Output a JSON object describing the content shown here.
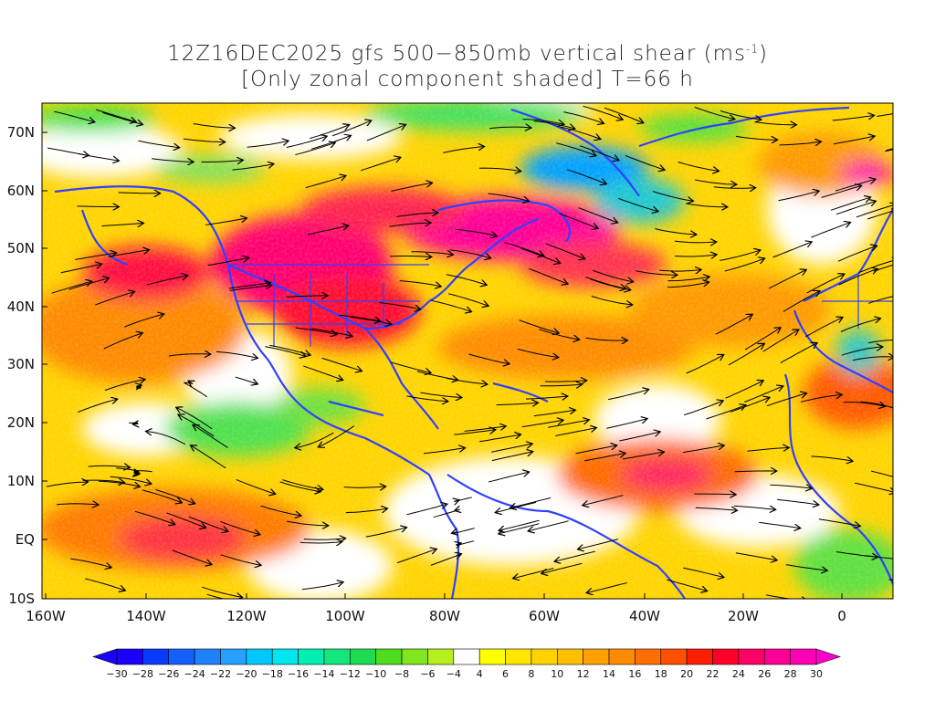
{
  "title": {
    "line1_prefix": "12Z16DEC2025 gfs 500−850mb vertical shear (ms",
    "line1_sup": "-1",
    "line1_suffix": ")",
    "line2": "[Only zonal component shaded] T=66 h"
  },
  "map": {
    "lat_labels": [
      "70N",
      "60N",
      "50N",
      "40N",
      "30N",
      "20N",
      "10N",
      "EQ",
      "10S"
    ],
    "lon_labels": [
      "160W",
      "140W",
      "120W",
      "100W",
      "80W",
      "60W",
      "40W",
      "20W",
      "0"
    ]
  },
  "colorbar": {
    "labels": [
      "-30",
      "-28",
      "-26",
      "-24",
      "-22",
      "-20",
      "-18",
      "-16",
      "-14",
      "-12",
      "-10",
      "-8",
      "-6",
      "-4",
      "4",
      "6",
      "8",
      "10",
      "12",
      "14",
      "16",
      "18",
      "20",
      "22",
      "24",
      "26",
      "28",
      "30"
    ],
    "colors": [
      "#1a00ff",
      "#0a3cff",
      "#1460ff",
      "#1e82ff",
      "#28a0ff",
      "#00c8ff",
      "#00e6f0",
      "#00f0b4",
      "#14e67d",
      "#1edc50",
      "#50dc1e",
      "#82e61e",
      "#b4f01e",
      "#ffffff",
      "#ffff00",
      "#ffe600",
      "#ffd200",
      "#ffbe00",
      "#ffa000",
      "#ff8c00",
      "#ff6e00",
      "#ff5000",
      "#ff1e00",
      "#ff0028",
      "#ff0064",
      "#ff0096",
      "#ff00b4"
    ],
    "under_color": "#1a00ff",
    "over_color": "#ff00c8"
  }
}
